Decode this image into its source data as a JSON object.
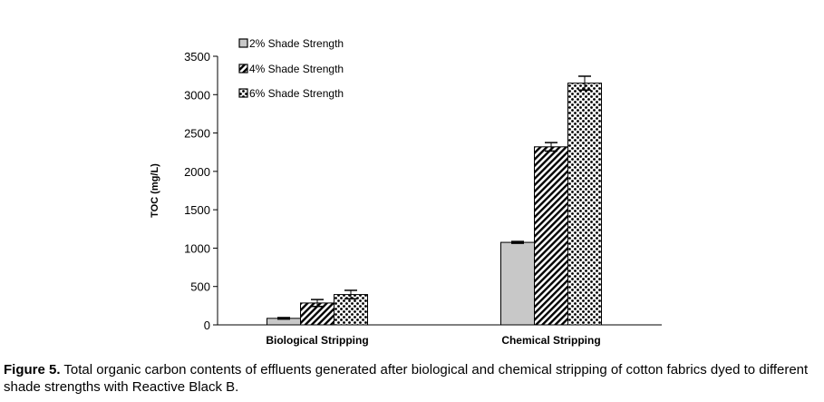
{
  "chart_data": {
    "type": "bar",
    "title": "",
    "xlabel": "",
    "ylabel": "TOC (mg/L)",
    "ylim": [
      0,
      3500
    ],
    "yticks": [
      0,
      500,
      1000,
      1500,
      2000,
      2500,
      3000,
      3500
    ],
    "grid": false,
    "legend_position": "top-left",
    "categories": [
      "Biological Stripping",
      "Chemical Stripping"
    ],
    "series": [
      {
        "name": "2% Shade Strength",
        "pattern": "solid-gray",
        "color": "#c8c8c8",
        "values": [
          85,
          1075
        ],
        "errors": [
          10,
          12
        ]
      },
      {
        "name": "4% Shade Strength",
        "pattern": "diagonal-hatch",
        "color": "#000000",
        "values": [
          285,
          2320
        ],
        "errors": [
          45,
          55
        ]
      },
      {
        "name": "6% Shade Strength",
        "pattern": "dots",
        "color": "#000000",
        "values": [
          395,
          3150
        ],
        "errors": [
          55,
          90
        ]
      }
    ]
  },
  "caption": {
    "label": "Figure 5.",
    "text": " Total organic carbon contents of effluents generated after biological and chemical stripping of cotton fabrics dyed to different shade strengths with Reactive Black B."
  }
}
